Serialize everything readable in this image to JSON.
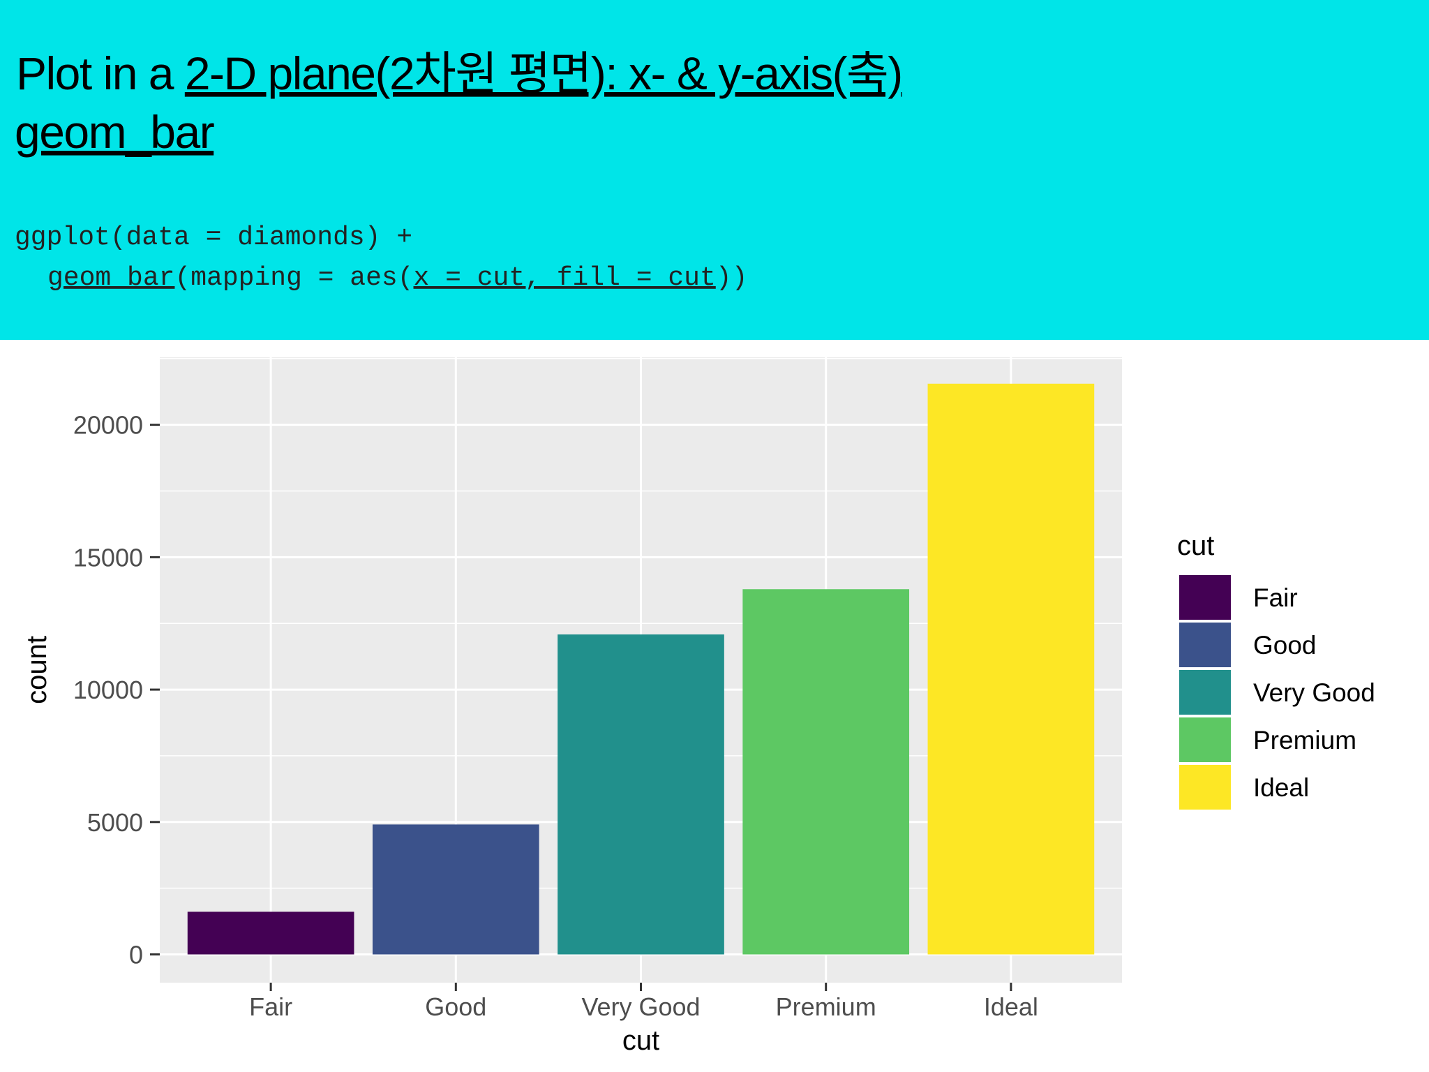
{
  "header": {
    "title": [
      {
        "text": "Plot in a "
      },
      {
        "text": "2-D plane(2차원 평면): x- & y-axis(축)",
        "underline": true
      }
    ],
    "subtitle": [
      {
        "text": "geom_bar",
        "underline": true
      }
    ],
    "code": [
      [
        {
          "text": "ggplot(data = diamonds) +"
        }
      ],
      [
        {
          "text": "geom_bar",
          "underline": true
        },
        {
          "text": "(mapping = aes("
        },
        {
          "text": "x = cut, fill = cut",
          "underline": true
        },
        {
          "text": "))"
        }
      ]
    ]
  },
  "chart_data": {
    "type": "bar",
    "categories": [
      "Fair",
      "Good",
      "Very Good",
      "Premium",
      "Ideal"
    ],
    "values": [
      1610,
      4906,
      12082,
      13791,
      21551
    ],
    "colors": [
      "#440154",
      "#3b528b",
      "#21908c",
      "#5dc863",
      "#fde725"
    ],
    "x_label": "cut",
    "y_label": "count",
    "legend_title": "cut",
    "ylim": [
      -1067,
      22547
    ],
    "yticks": [
      0,
      5000,
      10000,
      15000,
      20000
    ],
    "minor_yticks": [
      2500,
      7500,
      12500,
      17500,
      22500
    ],
    "grid": true,
    "legend": "right"
  }
}
